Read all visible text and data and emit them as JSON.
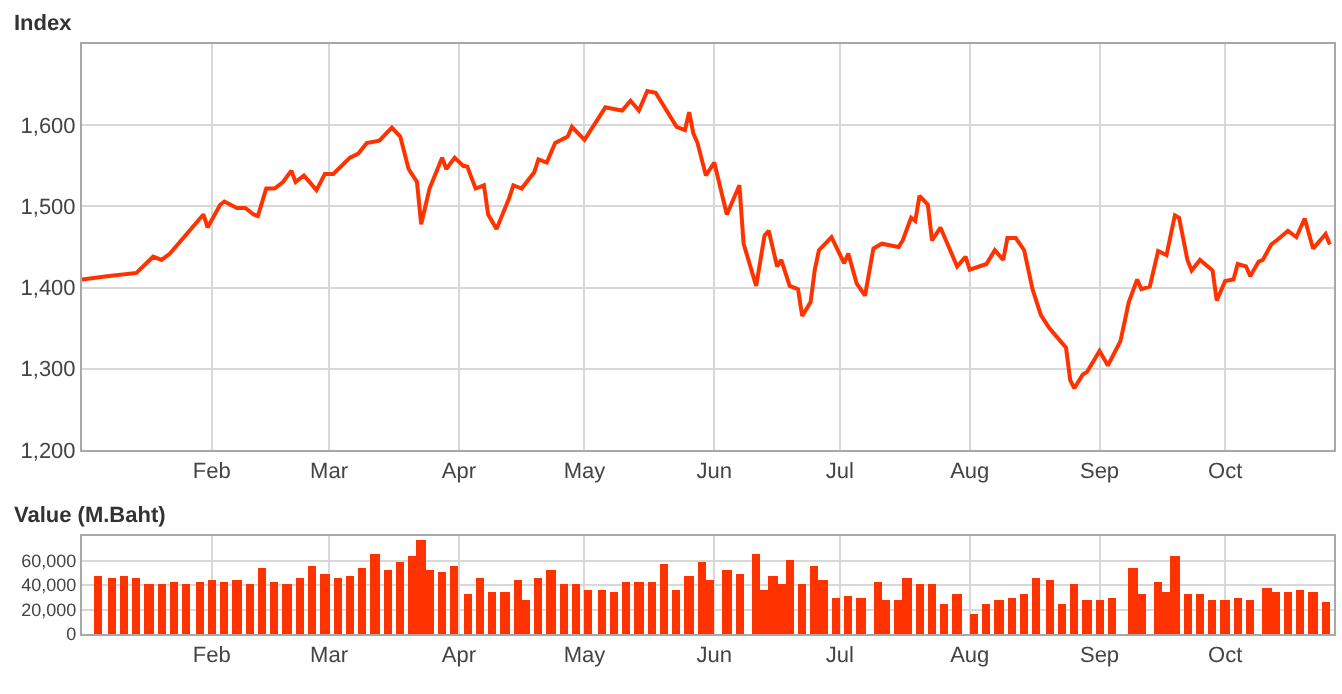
{
  "chart_data": [
    {
      "type": "line",
      "ylabel": "Index",
      "grid": true,
      "line_style": "solid",
      "xlim": [
        "--01-01",
        "--10-27"
      ],
      "xticks": [
        {
          "value": "--02-01",
          "label": "Feb"
        },
        {
          "value": "--03-01",
          "label": "Mar"
        },
        {
          "value": "--04-01",
          "label": "Apr"
        },
        {
          "value": "--05-01",
          "label": "May"
        },
        {
          "value": "--06-01",
          "label": "Jun"
        },
        {
          "value": "--07-01",
          "label": "Jul"
        },
        {
          "value": "--08-01",
          "label": "Aug"
        },
        {
          "value": "--09-01",
          "label": "Sep"
        },
        {
          "value": "--10-01",
          "label": "Oct"
        }
      ],
      "ylim": [
        1200,
        1700
      ],
      "yticks": [
        {
          "value": 1200,
          "label": "1,200"
        },
        {
          "value": 1300,
          "label": "1,300"
        },
        {
          "value": 1400,
          "label": "1,400"
        },
        {
          "value": 1500,
          "label": "1,500"
        },
        {
          "value": 1600,
          "label": "1,600"
        }
      ],
      "series": [
        {
          "color": "#ff3300",
          "x": [
            "--01-01",
            "--01-07",
            "--01-14",
            "--01-18",
            "--01-20",
            "--01-22",
            "--01-26",
            "--01-30",
            "--01-31",
            "--02-03",
            "--02-04",
            "--02-07",
            "--02-09",
            "--02-11",
            "--02-12",
            "--02-14",
            "--02-16",
            "--02-18",
            "--02-20",
            "--02-21",
            "--02-23",
            "--02-26",
            "--02-28",
            "--03-02",
            "--03-06",
            "--03-08",
            "--03-10",
            "--03-13",
            "--03-16",
            "--03-18",
            "--03-20",
            "--03-22",
            "--03-23",
            "--03-25",
            "--03-28",
            "--03-29",
            "--03-31",
            "--04-02",
            "--04-03",
            "--04-05",
            "--04-07",
            "--04-08",
            "--04-10",
            "--04-13",
            "--04-14",
            "--04-16",
            "--04-19",
            "--04-20",
            "--04-22",
            "--04-24",
            "--04-27",
            "--04-28",
            "--05-01",
            "--05-04",
            "--05-06",
            "--05-08",
            "--05-10",
            "--05-12",
            "--05-14",
            "--05-16",
            "--05-18",
            "--05-23",
            "--05-25",
            "--05-26",
            "--05-27",
            "--05-28",
            "--05-30",
            "--06-01",
            "--06-04",
            "--06-07",
            "--06-08",
            "--06-11",
            "--06-13",
            "--06-14",
            "--06-16",
            "--06-17",
            "--06-19",
            "--06-21",
            "--06-22",
            "--06-24",
            "--06-25",
            "--06-26",
            "--06-29",
            "--07-02",
            "--07-03",
            "--07-05",
            "--07-07",
            "--07-09",
            "--07-11",
            "--07-15",
            "--07-16",
            "--07-18",
            "--07-19",
            "--07-20",
            "--07-22",
            "--07-23",
            "--07-25",
            "--07-29",
            "--07-31",
            "--08-01",
            "--08-05",
            "--08-07",
            "--08-09",
            "--08-10",
            "--08-12",
            "--08-14",
            "--08-16",
            "--08-18",
            "--08-20",
            "--08-22",
            "--08-24",
            "--08-25",
            "--08-26",
            "--08-28",
            "--08-29",
            "--09-01",
            "--09-03",
            "--09-06",
            "--09-08",
            "--09-10",
            "--09-11",
            "--09-13",
            "--09-15",
            "--09-17",
            "--09-19",
            "--09-20",
            "--09-22",
            "--09-23",
            "--09-25",
            "--09-28",
            "--09-29",
            "--10-01",
            "--10-03",
            "--10-04",
            "--10-06",
            "--10-07",
            "--10-09",
            "--10-10",
            "--10-12",
            "--10-14",
            "--10-16",
            "--10-18",
            "--10-20",
            "--10-22",
            "--10-25",
            "--10-26"
          ],
          "values": [
            1410,
            1414,
            1418,
            1438,
            1434,
            1442,
            1466,
            1490,
            1474,
            1502,
            1506,
            1498,
            1498,
            1490,
            1488,
            1522,
            1522,
            1530,
            1544,
            1530,
            1538,
            1520,
            1540,
            1540,
            1560,
            1565,
            1578,
            1581,
            1597,
            1586,
            1546,
            1530,
            1478,
            1522,
            1560,
            1546,
            1560,
            1550,
            1549,
            1522,
            1526,
            1490,
            1472,
            1510,
            1526,
            1522,
            1542,
            1558,
            1554,
            1578,
            1586,
            1598,
            1582,
            1606,
            1622,
            1620,
            1618,
            1630,
            1618,
            1642,
            1640,
            1598,
            1594,
            1616,
            1590,
            1578,
            1538,
            1554,
            1490,
            1526,
            1454,
            1402,
            1464,
            1470,
            1426,
            1434,
            1402,
            1398,
            1365,
            1382,
            1422,
            1446,
            1462,
            1430,
            1442,
            1405,
            1390,
            1448,
            1454,
            1450,
            1458,
            1486,
            1482,
            1513,
            1502,
            1458,
            1474,
            1426,
            1438,
            1422,
            1429,
            1446,
            1434,
            1461,
            1461,
            1446,
            1398,
            1366,
            1350,
            1338,
            1326,
            1286,
            1276,
            1293,
            1296,
            1322,
            1304,
            1334,
            1382,
            1410,
            1398,
            1401,
            1445,
            1440,
            1489,
            1486,
            1434,
            1421,
            1434,
            1421,
            1384,
            1408,
            1410,
            1429,
            1426,
            1414,
            1432,
            1434,
            1453,
            1461,
            1470,
            1462,
            1485,
            1448,
            1466,
            1453
          ]
        }
      ]
    },
    {
      "type": "bar",
      "ylabel": "Value (M.Baht)",
      "grid": true,
      "xlim": [
        "--01-01",
        "--10-27"
      ],
      "xticks": [
        {
          "value": "--02-01",
          "label": "Feb"
        },
        {
          "value": "--03-01",
          "label": "Mar"
        },
        {
          "value": "--04-01",
          "label": "Apr"
        },
        {
          "value": "--05-01",
          "label": "May"
        },
        {
          "value": "--06-01",
          "label": "Jun"
        },
        {
          "value": "--07-01",
          "label": "Jul"
        },
        {
          "value": "--08-01",
          "label": "Aug"
        },
        {
          "value": "--09-01",
          "label": "Sep"
        },
        {
          "value": "--10-01",
          "label": "Oct"
        }
      ],
      "ylim": [
        0,
        80000
      ],
      "yticks": [
        0,
        {
          "value": 20000,
          "label": "20,000"
        },
        {
          "value": 40000,
          "label": "40,000"
        },
        {
          "value": 60000,
          "label": "60,000"
        }
      ],
      "series": [
        {
          "color": "#ff3300",
          "x": [
            "--01-05",
            "--01-08",
            "--01-11",
            "--01-14",
            "--01-17",
            "--01-20",
            "--01-23",
            "--01-26",
            "--01-29",
            "--02-01",
            "--02-04",
            "--02-07",
            "--02-10",
            "--02-13",
            "--02-16",
            "--02-19",
            "--02-22",
            "--02-25",
            "--02-28",
            "--03-03",
            "--03-06",
            "--03-09",
            "--03-12",
            "--03-15",
            "--03-18",
            "--03-21",
            "--03-23",
            "--03-25",
            "--03-28",
            "--03-31",
            "--04-03",
            "--04-06",
            "--04-09",
            "--04-12",
            "--04-15",
            "--04-17",
            "--04-20",
            "--04-23",
            "--04-26",
            "--04-29",
            "--05-02",
            "--05-05",
            "--05-08",
            "--05-11",
            "--05-14",
            "--05-17",
            "--05-20",
            "--05-23",
            "--05-26",
            "--05-29",
            "--05-31",
            "--06-04",
            "--06-07",
            "--06-11",
            "--06-13",
            "--06-15",
            "--06-17",
            "--06-19",
            "--06-22",
            "--06-25",
            "--06-27",
            "--06-30",
            "--07-03",
            "--07-06",
            "--07-10",
            "--07-12",
            "--07-15",
            "--07-17",
            "--07-20",
            "--07-23",
            "--07-26",
            "--07-29",
            "--08-02",
            "--08-05",
            "--08-08",
            "--08-11",
            "--08-14",
            "--08-17",
            "--08-20",
            "--08-23",
            "--08-26",
            "--08-29",
            "--09-01",
            "--09-04",
            "--09-09",
            "--09-11",
            "--09-15",
            "--09-17",
            "--09-19",
            "--09-22",
            "--09-25",
            "--09-28",
            "--10-01",
            "--10-04",
            "--10-07",
            "--10-11",
            "--10-13",
            "--10-16",
            "--10-19",
            "--10-22",
            "--10-25"
          ],
          "values": [
            47000,
            46000,
            47000,
            45000,
            41000,
            40000,
            42000,
            40000,
            43000,
            44000,
            42000,
            44000,
            40000,
            54000,
            43000,
            41000,
            46000,
            55000,
            49000,
            45000,
            47000,
            54000,
            65000,
            53000,
            58000,
            63000,
            77000,
            52000,
            50000,
            55000,
            32000,
            46000,
            34000,
            34000,
            44000,
            28000,
            46000,
            52000,
            40000,
            40000,
            36000,
            36000,
            35000,
            42000,
            42000,
            43000,
            57000,
            36000,
            48000,
            58000,
            44000,
            52000,
            49000,
            65000,
            36000,
            48000,
            40000,
            61000,
            40000,
            55000,
            44000,
            30000,
            31000,
            30000,
            42000,
            28000,
            28000,
            45000,
            40000,
            40000,
            25000,
            32000,
            17000,
            25000,
            28000,
            30000,
            32000,
            45000,
            44000,
            25000,
            40000,
            28000,
            28000,
            30000,
            54000,
            32000,
            42000,
            34000,
            63000,
            32000,
            32000,
            28000,
            28000,
            30000,
            28000,
            37000,
            34000,
            34000,
            36000,
            34000,
            26000
          ]
        }
      ]
    }
  ]
}
